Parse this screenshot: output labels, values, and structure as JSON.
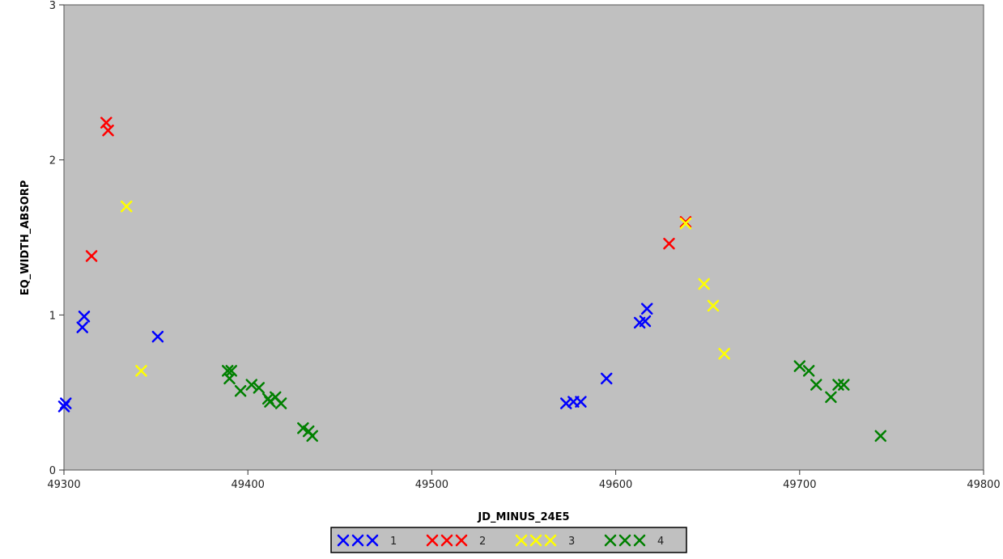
{
  "chart_data": {
    "type": "scatter",
    "xlabel": "JD_MINUS_24E5",
    "ylabel": "EQ_WIDTH_ABSORP",
    "xlim": [
      49300,
      49800
    ],
    "ylim": [
      0,
      3
    ],
    "xticks": [
      "49300",
      "49400",
      "49500",
      "49600",
      "49700",
      "49800"
    ],
    "yticks": [
      "0",
      "1",
      "2",
      "3"
    ],
    "grid": false,
    "legend_position": "bottom",
    "marker": "x",
    "series": [
      {
        "name": "1",
        "color": "#0000ff",
        "points": [
          [
            49300,
            0.41
          ],
          [
            49301,
            0.43
          ],
          [
            49310,
            0.92
          ],
          [
            49311,
            0.99
          ],
          [
            49351,
            0.86
          ],
          [
            49573,
            0.43
          ],
          [
            49577,
            0.44
          ],
          [
            49581,
            0.44
          ],
          [
            49595,
            0.59
          ],
          [
            49613,
            0.95
          ],
          [
            49616,
            0.96
          ],
          [
            49617,
            1.04
          ]
        ]
      },
      {
        "name": "2",
        "color": "#ff0000",
        "points": [
          [
            49315,
            1.38
          ],
          [
            49323,
            2.24
          ],
          [
            49324,
            2.19
          ],
          [
            49629,
            1.46
          ],
          [
            49638,
            1.6
          ]
        ]
      },
      {
        "name": "3",
        "color": "#ffff00",
        "points": [
          [
            49334,
            1.7
          ],
          [
            49342,
            0.64
          ],
          [
            49638,
            1.59
          ],
          [
            49648,
            1.2
          ],
          [
            49653,
            1.06
          ],
          [
            49659,
            0.75
          ]
        ]
      },
      {
        "name": "4",
        "color": "#008000",
        "points": [
          [
            49389,
            0.64
          ],
          [
            49391,
            0.64
          ],
          [
            49390,
            0.59
          ],
          [
            49396,
            0.51
          ],
          [
            49402,
            0.55
          ],
          [
            49406,
            0.53
          ],
          [
            49411,
            0.46
          ],
          [
            49412,
            0.44
          ],
          [
            49415,
            0.47
          ],
          [
            49418,
            0.43
          ],
          [
            49430,
            0.27
          ],
          [
            49433,
            0.25
          ],
          [
            49435,
            0.22
          ],
          [
            49700,
            0.67
          ],
          [
            49705,
            0.64
          ],
          [
            49709,
            0.55
          ],
          [
            49717,
            0.47
          ],
          [
            49721,
            0.55
          ],
          [
            49724,
            0.55
          ],
          [
            49744,
            0.22
          ]
        ]
      }
    ]
  }
}
